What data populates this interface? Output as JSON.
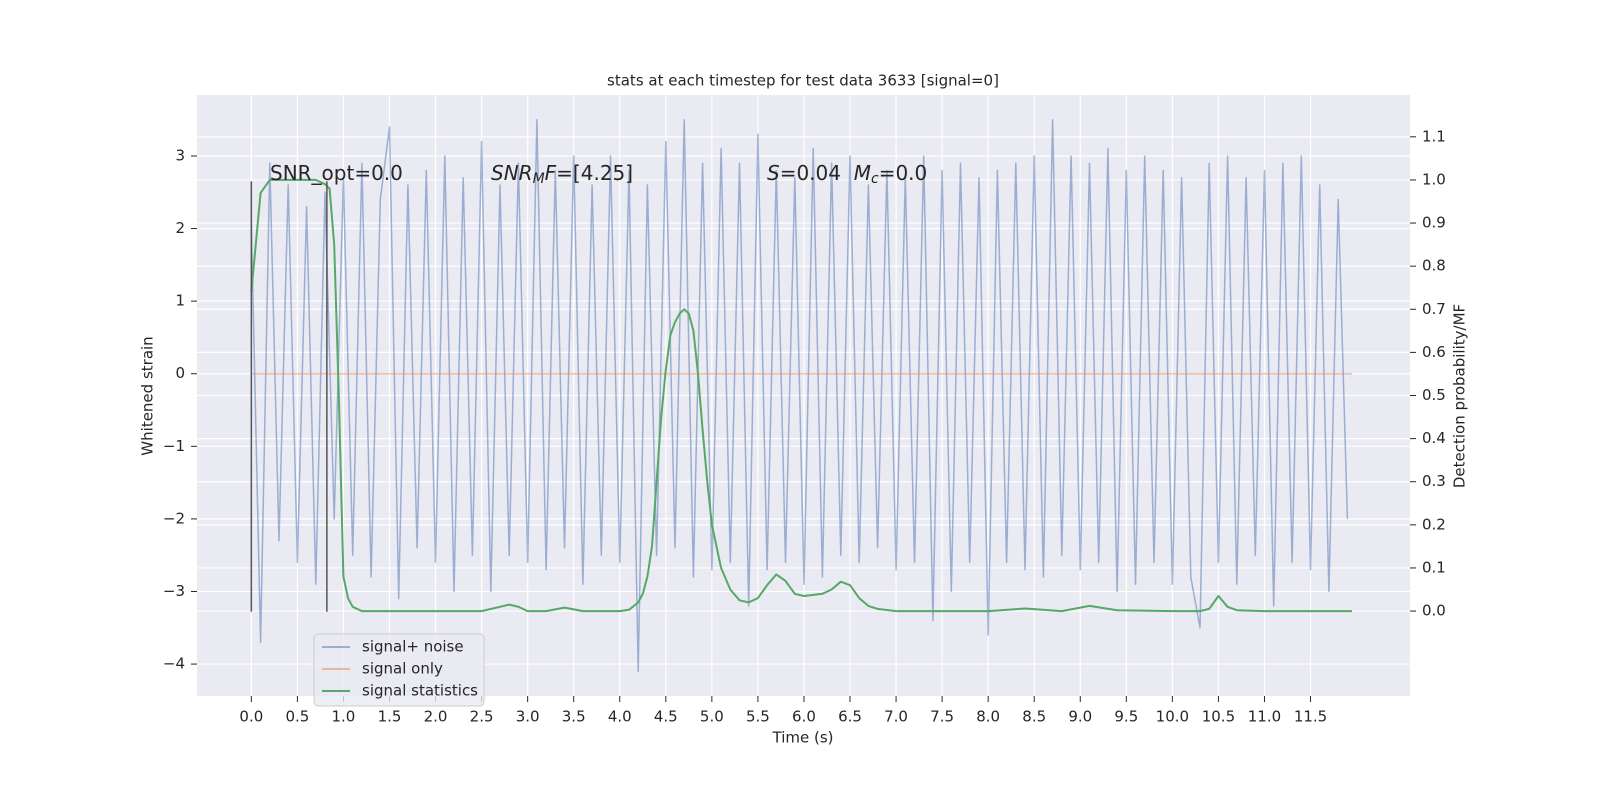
{
  "chart_data": {
    "type": "line",
    "title": "stats at each timestep for test data 3633 [signal=0]",
    "xlabel": "Time (s)",
    "ylabel": "Whitened strain",
    "y2label": "Detection probability/MF",
    "xlim": [
      -0.59,
      12.58
    ],
    "ylim": [
      -4.44,
      3.84
    ],
    "y2lim": [
      -0.197,
      1.197
    ],
    "xticks": [
      {
        "value": 0,
        "label": "0.0"
      },
      0.5,
      {
        "value": 1,
        "label": "1.0"
      },
      1.5,
      {
        "value": 2,
        "label": "2.0"
      },
      2.5,
      {
        "value": 3,
        "label": "3.0"
      },
      3.5,
      {
        "value": 4,
        "label": "4.0"
      },
      4.5,
      {
        "value": 5,
        "label": "5.0"
      },
      5.5,
      {
        "value": 6,
        "label": "6.0"
      },
      6.5,
      {
        "value": 7,
        "label": "7.0"
      },
      7.5,
      {
        "value": 8,
        "label": "8.0"
      },
      8.5,
      {
        "value": 9,
        "label": "9.0"
      },
      9.5,
      {
        "value": 10,
        "label": "10.0"
      },
      10.5,
      {
        "value": 11,
        "label": "11.0"
      },
      11.5
    ],
    "yticks": [
      {
        "value": -4,
        "label": "−4"
      },
      {
        "value": -3,
        "label": "−3"
      },
      {
        "value": -2,
        "label": "−2"
      },
      {
        "value": -1,
        "label": "−1"
      },
      0,
      1,
      2,
      3
    ],
    "y2ticks": [
      {
        "value": 0,
        "label": "0.0"
      },
      0.1,
      0.2,
      0.3,
      0.4,
      0.5,
      0.6,
      0.7,
      0.8,
      0.9,
      {
        "value": 1,
        "label": "1.0"
      },
      1.1
    ],
    "grid": true,
    "legend_position": "lower left",
    "series": [
      {
        "name": "signal+ noise",
        "color": "#4c72b0",
        "opacity": 0.5,
        "x": [
          0,
          0.1,
          0.2,
          0.3,
          0.4,
          0.5,
          0.6,
          0.7,
          0.8,
          0.9,
          1,
          1.1,
          1.2,
          1.3,
          1.4,
          1.5,
          1.6,
          1.7,
          1.8,
          1.9,
          2,
          2.1,
          2.2,
          2.3,
          2.4,
          2.5,
          2.6,
          2.7,
          2.8,
          2.9,
          3,
          3.1,
          3.2,
          3.3,
          3.4,
          3.5,
          3.6,
          3.7,
          3.8,
          3.9,
          4,
          4.1,
          4.2,
          4.3,
          4.4,
          4.5,
          4.6,
          4.7,
          4.8,
          4.9,
          5,
          5.1,
          5.2,
          5.3,
          5.4,
          5.5,
          5.6,
          5.7,
          5.8,
          5.9,
          6,
          6.1,
          6.2,
          6.3,
          6.4,
          6.5,
          6.6,
          6.7,
          6.8,
          6.9,
          7,
          7.1,
          7.2,
          7.3,
          7.4,
          7.5,
          7.6,
          7.7,
          7.8,
          7.9,
          8,
          8.1,
          8.2,
          8.3,
          8.4,
          8.5,
          8.6,
          8.7,
          8.8,
          8.9,
          9,
          9.1,
          9.2,
          9.3,
          9.4,
          9.5,
          9.6,
          9.7,
          9.8,
          9.9,
          10,
          10.1,
          10.2,
          10.3,
          10.4,
          10.5,
          10.6,
          10.7,
          10.8,
          10.9,
          11,
          11.1,
          11.2,
          11.3,
          11.4,
          11.5,
          11.6,
          11.7,
          11.8,
          11.9
        ],
        "values": [
          2.1,
          -3.7,
          2.9,
          -2.3,
          2.6,
          -2.6,
          2.3,
          -2.9,
          2.5,
          -2.0,
          2.7,
          -2.5,
          2.9,
          -2.8,
          2.4,
          3.4,
          -3.1,
          2.6,
          -2.4,
          2.8,
          -2.6,
          3.0,
          -3.0,
          2.7,
          -2.5,
          3.2,
          -3.0,
          2.6,
          -2.5,
          2.9,
          -2.6,
          3.5,
          -2.7,
          2.8,
          -2.4,
          3.0,
          -2.9,
          2.6,
          -2.5,
          3.0,
          -2.6,
          2.8,
          -4.1,
          2.6,
          -2.5,
          3.2,
          -2.4,
          3.5,
          -2.8,
          2.9,
          -2.7,
          3.1,
          -2.6,
          2.9,
          -3.2,
          3.3,
          -2.7,
          2.8,
          -2.6,
          2.7,
          -2.9,
          3.1,
          -2.8,
          2.9,
          -2.5,
          3.0,
          -2.6,
          2.6,
          -2.4,
          2.8,
          -2.7,
          2.7,
          -2.6,
          3.0,
          -3.4,
          2.8,
          -3.0,
          2.9,
          -2.6,
          2.7,
          -3.6,
          2.8,
          -2.6,
          2.9,
          -2.7,
          3.0,
          -2.8,
          3.5,
          -2.5,
          3.0,
          -2.7,
          2.9,
          -2.6,
          3.1,
          -3.0,
          2.8,
          -2.9,
          3.0,
          -2.6,
          2.8,
          -2.9,
          2.7,
          -2.8,
          -3.5,
          2.9,
          -2.6,
          3.0,
          -2.9,
          2.7,
          -2.5,
          2.8,
          -3.2,
          2.9,
          -2.6,
          3.0,
          -2.7,
          2.6,
          -3.0,
          2.4,
          -2.0
        ]
      },
      {
        "name": "signal only",
        "color": "#dd8452",
        "opacity": 0.5,
        "x": [
          0,
          11.95
        ],
        "values": [
          0,
          0
        ]
      },
      {
        "name": "signal statistics",
        "color": "#55a868",
        "opacity": 1,
        "axis": "y2",
        "x": [
          0,
          0.1,
          0.2,
          0.3,
          0.5,
          0.7,
          0.8,
          0.85,
          0.9,
          0.95,
          1.0,
          1.05,
          1.1,
          1.2,
          1.5,
          2.0,
          2.5,
          2.7,
          2.8,
          2.9,
          3.0,
          3.2,
          3.4,
          3.6,
          4.0,
          4.1,
          4.2,
          4.25,
          4.3,
          4.35,
          4.4,
          4.45,
          4.5,
          4.55,
          4.6,
          4.65,
          4.7,
          4.75,
          4.8,
          4.85,
          4.9,
          4.95,
          5.0,
          5.1,
          5.2,
          5.3,
          5.4,
          5.5,
          5.6,
          5.7,
          5.8,
          5.9,
          6.0,
          6.2,
          6.3,
          6.4,
          6.5,
          6.6,
          6.7,
          6.8,
          7.0,
          8.0,
          8.4,
          8.8,
          9.1,
          9.4,
          10.0,
          10.3,
          10.4,
          10.5,
          10.6,
          10.7,
          11.0,
          11.95
        ],
        "values": [
          0.74,
          0.97,
          1.0,
          1.0,
          1.0,
          1.0,
          0.99,
          0.98,
          0.85,
          0.5,
          0.08,
          0.03,
          0.01,
          0.0,
          0.0,
          0.0,
          0.0,
          0.01,
          0.015,
          0.01,
          0.0,
          0.0,
          0.008,
          0.0,
          0.0,
          0.003,
          0.02,
          0.04,
          0.08,
          0.15,
          0.3,
          0.45,
          0.56,
          0.64,
          0.67,
          0.69,
          0.7,
          0.69,
          0.65,
          0.55,
          0.42,
          0.3,
          0.2,
          0.1,
          0.05,
          0.025,
          0.02,
          0.03,
          0.06,
          0.085,
          0.07,
          0.04,
          0.035,
          0.04,
          0.05,
          0.068,
          0.06,
          0.03,
          0.012,
          0.005,
          0.0,
          0.0,
          0.006,
          0.0,
          0.012,
          0.002,
          0.0,
          0.0,
          0.005,
          0.035,
          0.01,
          0.002,
          0.0,
          0.0
        ]
      }
    ],
    "vlines": [
      {
        "x": 0,
        "ymin": -3.28,
        "ymax": 2.65,
        "color": "#555555"
      },
      {
        "x": 0.82,
        "ymin": -3.28,
        "ymax": 2.65,
        "color": "#555555"
      }
    ],
    "annotations": [
      {
        "parts": [
          {
            "text": "SNR_opt=0.0",
            "italic": false,
            "sub": false
          }
        ]
      },
      {
        "parts": [
          {
            "text": "SNR",
            "italic": true,
            "sub": false
          },
          {
            "text": "M",
            "italic": true,
            "sub": true
          },
          {
            "text": "F",
            "italic": true,
            "sub": false
          },
          {
            "text": "=[4.25]",
            "italic": false,
            "sub": false
          }
        ]
      },
      {
        "parts": [
          {
            "text": "S",
            "italic": true,
            "sub": false
          },
          {
            "text": "=0.04  ",
            "italic": false,
            "sub": false
          },
          {
            "text": "M",
            "italic": true,
            "sub": false
          },
          {
            "text": "c",
            "italic": true,
            "sub": true
          },
          {
            "text": "=0.0",
            "italic": false,
            "sub": false
          }
        ]
      }
    ]
  }
}
